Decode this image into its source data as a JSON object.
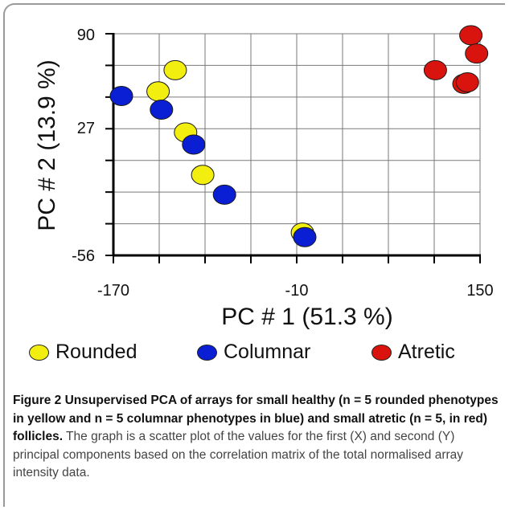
{
  "chart_data": {
    "type": "scatter",
    "xlabel": "PC # 1 (51.3 %)",
    "ylabel": "PC # 2 (13.9 %)",
    "xlim": [
      -170,
      150
    ],
    "ylim": [
      -56,
      90
    ],
    "x_ticks": [
      "-170",
      "-10",
      "150"
    ],
    "y_ticks": [
      "90",
      "27",
      "-56"
    ],
    "grid": true,
    "series": [
      {
        "name": "Rounded",
        "color": "#f2ee0f",
        "points": [
          {
            "x": -116,
            "y": 66
          },
          {
            "x": -131,
            "y": 52
          },
          {
            "x": -107,
            "y": 25
          },
          {
            "x": -92,
            "y": -3
          },
          {
            "x": -5,
            "y": -41
          }
        ]
      },
      {
        "name": "Columnar",
        "color": "#0a1fd4",
        "points": [
          {
            "x": -163,
            "y": 49
          },
          {
            "x": -128,
            "y": 40
          },
          {
            "x": -100,
            "y": 17
          },
          {
            "x": -73,
            "y": -16
          },
          {
            "x": -3,
            "y": -44
          }
        ]
      },
      {
        "name": "Atretic",
        "color": "#d9140f",
        "points": [
          {
            "x": 111,
            "y": 66
          },
          {
            "x": 136,
            "y": 57
          },
          {
            "x": 139,
            "y": 58
          },
          {
            "x": 142,
            "y": 89
          },
          {
            "x": 147,
            "y": 77
          }
        ]
      }
    ]
  },
  "legend": {
    "items": [
      {
        "label": "Rounded",
        "color": "#f2ee0f"
      },
      {
        "label": "Columnar",
        "color": "#0a1fd4"
      },
      {
        "label": "Atretic",
        "color": "#d9140f"
      }
    ]
  },
  "caption": {
    "title": "Figure 2 Unsupervised PCA of arrays for small healthy (n = 5 rounded phenotypes in yellow and n = 5 columnar phenotypes in blue) and small atretic (n = 5, in red) follicles.",
    "body": " The graph is a scatter plot of the values for the first (X) and second (Y) principal components based on the correlation matrix of the total normalised array intensity data."
  }
}
